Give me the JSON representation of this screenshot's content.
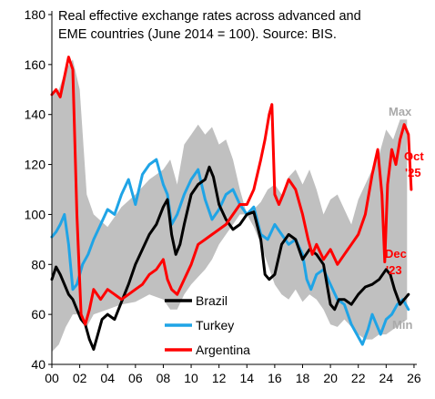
{
  "chart_data": {
    "type": "line",
    "title_lines": [
      "Real effective exchange rates across advanced and",
      "EME countries (June 2014 = 100). Source: BIS."
    ],
    "xlabel": "",
    "ylabel": "",
    "xlim": [
      2000,
      2026.2
    ],
    "ylim": [
      40,
      180
    ],
    "x_ticks": [
      2000,
      2002,
      2004,
      2006,
      2008,
      2010,
      2012,
      2014,
      2016,
      2018,
      2020,
      2022,
      2024,
      2026
    ],
    "x_tick_labels": [
      "00",
      "02",
      "04",
      "06",
      "08",
      "10",
      "12",
      "14",
      "16",
      "18",
      "20",
      "22",
      "24",
      "26"
    ],
    "y_ticks": [
      40,
      60,
      80,
      100,
      120,
      140,
      160,
      180
    ],
    "y_tick_labels": [
      "40",
      "60",
      "80",
      "100",
      "120",
      "140",
      "160",
      "180"
    ],
    "grid": false,
    "band": {
      "name_upper": "Max",
      "name_lower": "Min",
      "color": "#c0c0c0",
      "x": [
        2000,
        2000.5,
        2001,
        2001.5,
        2002,
        2002.5,
        2003,
        2004,
        2005,
        2006,
        2007,
        2008,
        2008.5,
        2009,
        2009.5,
        2010,
        2010.5,
        2011,
        2011.5,
        2012,
        2012.5,
        2013,
        2013.5,
        2014,
        2014.5,
        2015,
        2015.5,
        2016,
        2016.5,
        2017,
        2017.5,
        2018,
        2018.5,
        2019,
        2019.5,
        2020,
        2020.5,
        2021,
        2021.5,
        2022,
        2022.5,
        2023,
        2023.5,
        2024,
        2024.5,
        2025,
        2025.5
      ],
      "upper": [
        148,
        150,
        158,
        162,
        150,
        108,
        100,
        95,
        103,
        108,
        114,
        118,
        122,
        112,
        128,
        132,
        136,
        132,
        135,
        128,
        130,
        122,
        110,
        100,
        102,
        105,
        110,
        112,
        108,
        115,
        118,
        112,
        118,
        110,
        100,
        106,
        108,
        102,
        96,
        106,
        112,
        118,
        124,
        134,
        130,
        138,
        138
      ],
      "lower": [
        45,
        48,
        55,
        60,
        60,
        55,
        60,
        62,
        64,
        65,
        68,
        66,
        62,
        62,
        68,
        72,
        75,
        78,
        82,
        88,
        92,
        96,
        100,
        100,
        95,
        88,
        80,
        72,
        68,
        66,
        70,
        65,
        68,
        66,
        62,
        56,
        55,
        58,
        55,
        52,
        50,
        50,
        52,
        52,
        54,
        56,
        58
      ]
    },
    "series": [
      {
        "name": "Brazil",
        "color": "#000000",
        "x": [
          2000,
          2000.3,
          2000.6,
          2000.9,
          2001.2,
          2001.5,
          2001.8,
          2002.1,
          2002.4,
          2002.7,
          2003,
          2003.3,
          2003.6,
          2004,
          2004.5,
          2005,
          2005.5,
          2006,
          2006.5,
          2007,
          2007.5,
          2008,
          2008.3,
          2008.6,
          2008.9,
          2009.2,
          2009.5,
          2010,
          2010.5,
          2011,
          2011.3,
          2011.6,
          2012,
          2012.5,
          2013,
          2013.5,
          2014,
          2014.5,
          2015,
          2015.3,
          2015.6,
          2016,
          2016.5,
          2017,
          2017.5,
          2018,
          2018.5,
          2019,
          2019.5,
          2020,
          2020.3,
          2020.6,
          2021,
          2021.5,
          2022,
          2022.5,
          2023,
          2023.5,
          2024,
          2024.3,
          2024.6,
          2025,
          2025.3,
          2025.6
        ],
        "values": [
          74,
          79,
          76,
          72,
          68,
          66,
          62,
          58,
          56,
          50,
          46,
          52,
          58,
          60,
          58,
          65,
          72,
          80,
          86,
          92,
          96,
          103,
          106,
          92,
          84,
          88,
          96,
          108,
          112,
          114,
          119,
          115,
          104,
          98,
          94,
          96,
          100,
          101,
          90,
          76,
          74,
          76,
          88,
          92,
          90,
          82,
          86,
          84,
          80,
          64,
          62,
          66,
          66,
          64,
          68,
          71,
          72,
          74,
          78,
          76,
          70,
          64,
          66,
          68
        ]
      },
      {
        "name": "Turkey",
        "color": "#1fa4e6",
        "x": [
          2000,
          2000.3,
          2000.6,
          2000.9,
          2001.2,
          2001.5,
          2001.8,
          2002.2,
          2002.6,
          2003,
          2003.5,
          2004,
          2004.5,
          2005,
          2005.5,
          2006,
          2006.5,
          2007,
          2007.5,
          2008,
          2008.3,
          2008.6,
          2009,
          2009.5,
          2010,
          2010.5,
          2011,
          2011.5,
          2012,
          2012.5,
          2013,
          2013.5,
          2014,
          2014.5,
          2015,
          2015.5,
          2016,
          2016.5,
          2017,
          2017.5,
          2018,
          2018.3,
          2018.6,
          2019,
          2019.5,
          2020,
          2020.5,
          2021,
          2021.5,
          2021.9,
          2022.3,
          2022.7,
          2023,
          2023.3,
          2023.6,
          2024,
          2024.4,
          2024.8,
          2025.2,
          2025.6
        ],
        "values": [
          91,
          93,
          96,
          100,
          88,
          70,
          72,
          80,
          84,
          90,
          96,
          102,
          100,
          108,
          114,
          104,
          116,
          120,
          122,
          112,
          108,
          96,
          100,
          108,
          114,
          118,
          106,
          98,
          102,
          108,
          110,
          104,
          100,
          103,
          92,
          90,
          96,
          92,
          88,
          90,
          84,
          74,
          70,
          76,
          78,
          72,
          66,
          64,
          56,
          52,
          48,
          54,
          60,
          56,
          52,
          58,
          60,
          64,
          66,
          62
        ]
      },
      {
        "name": "Argentina",
        "color": "#ff0000",
        "x": [
          2000,
          2000.3,
          2000.6,
          2000.9,
          2001.2,
          2001.5,
          2001.8,
          2002.1,
          2002.4,
          2002.7,
          2003,
          2003.5,
          2004,
          2004.5,
          2005,
          2005.5,
          2006,
          2006.5,
          2007,
          2007.5,
          2008,
          2008.3,
          2008.6,
          2009,
          2009.5,
          2010,
          2010.5,
          2011,
          2011.5,
          2012,
          2012.5,
          2013,
          2013.5,
          2014,
          2014.5,
          2015,
          2015.3,
          2015.6,
          2015.8,
          2016,
          2016.3,
          2016.6,
          2017,
          2017.5,
          2018,
          2018.4,
          2018.7,
          2019,
          2019.5,
          2020,
          2020.5,
          2021,
          2021.5,
          2022,
          2022.5,
          2023,
          2023.4,
          2023.7,
          2023.9,
          2024.1,
          2024.4,
          2024.7,
          2025,
          2025.3,
          2025.6,
          2025.8
        ],
        "values": [
          148,
          150,
          147,
          155,
          163,
          158,
          100,
          60,
          56,
          62,
          70,
          66,
          70,
          68,
          66,
          68,
          70,
          72,
          76,
          78,
          82,
          74,
          70,
          68,
          74,
          80,
          88,
          90,
          92,
          94,
          96,
          100,
          104,
          104,
          110,
          122,
          130,
          140,
          144,
          108,
          104,
          108,
          114,
          110,
          100,
          90,
          84,
          88,
          82,
          86,
          80,
          84,
          88,
          92,
          100,
          116,
          126,
          108,
          81,
          112,
          126,
          120,
          130,
          136,
          132,
          110
        ]
      }
    ],
    "annotations": [
      {
        "text": "Max",
        "color": "#aaaaaa"
      },
      {
        "text": "Min",
        "color": "#aaaaaa"
      },
      {
        "text": "Oct '25",
        "lines": [
          "Oct",
          "'25"
        ],
        "color": "#ff0000"
      },
      {
        "text": "Dec '23",
        "lines": [
          "Dec",
          "'23"
        ],
        "color": "#ff0000"
      }
    ]
  }
}
